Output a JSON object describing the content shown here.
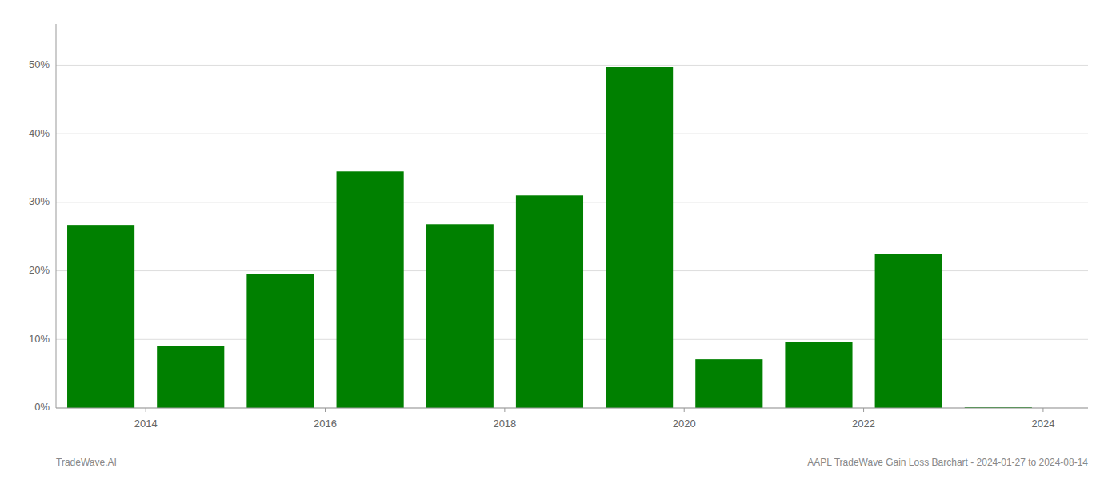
{
  "chart_data": {
    "type": "bar",
    "x": [
      2013.5,
      2014.5,
      2015.5,
      2016.5,
      2017.5,
      2018.5,
      2019.5,
      2020.5,
      2021.5,
      2022.5,
      2023.5
    ],
    "values": [
      0.267,
      0.091,
      0.195,
      0.345,
      0.268,
      0.31,
      0.497,
      0.071,
      0.096,
      0.225,
      0.001
    ],
    "color": "#008000",
    "xlim": [
      2013.0,
      2024.5
    ],
    "xticks": [
      2014,
      2016,
      2018,
      2020,
      2022,
      2024
    ],
    "ylim": [
      0,
      0.56
    ],
    "yticks": [
      {
        "value": 0.0,
        "label": "0%"
      },
      {
        "value": 0.1,
        "label": "10%"
      },
      {
        "value": 0.2,
        "label": "20%"
      },
      {
        "value": 0.3,
        "label": "30%"
      },
      {
        "value": 0.4,
        "label": "40%"
      },
      {
        "value": 0.5,
        "label": "50%"
      }
    ],
    "grid": true,
    "annotations": [
      "TradeWave.AI",
      "AAPL TradeWave Gain Loss Barchart - 2024-01-27 to 2024-08-14"
    ]
  }
}
